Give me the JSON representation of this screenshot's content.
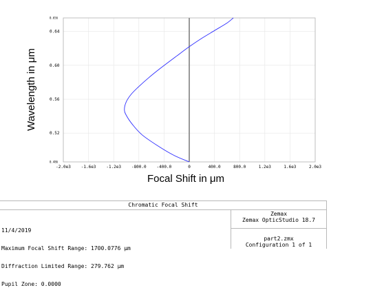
{
  "chart_data": {
    "type": "line",
    "title": "",
    "xlabel": "Focal Shift in μm",
    "ylabel": "Wavelength in μm",
    "xlim": [
      -2000,
      2000
    ],
    "ylim": [
      0.486,
      0.656
    ],
    "grid": true,
    "x_ticks": [
      -2000,
      -1600,
      -1200,
      -800,
      -400,
      0,
      400,
      800,
      1200,
      1600,
      2000
    ],
    "x_tick_labels": [
      "-2.0e3",
      "-1.6e3",
      "-1.2e3",
      "-800.0",
      "-400.0",
      "0",
      "400.0",
      "800.0",
      "1.2e3",
      "1.6e3",
      "2.0e3"
    ],
    "y_ticks": [
      0.486,
      0.52,
      0.56,
      0.6,
      0.64,
      0.656
    ],
    "y_tick_labels": [
      "0.486",
      "0.52",
      "0.56",
      "0.60",
      "0.64",
      "0.656"
    ],
    "series": [
      {
        "color": "#2f2fff",
        "x": [
          0,
          -250,
          -500,
          -750,
          -900,
          -1000,
          -1030,
          -1000,
          -920,
          -800,
          -650,
          -450,
          -200,
          0,
          200,
          400,
          600,
          700
        ],
        "y": [
          0.486,
          0.494,
          0.505,
          0.518,
          0.53,
          0.541,
          0.548,
          0.557,
          0.566,
          0.575,
          0.585,
          0.597,
          0.611,
          0.622,
          0.632,
          0.641,
          0.65,
          0.656
        ]
      }
    ],
    "zero_line_color": "#7f7f7f"
  },
  "info": {
    "title": "Chromatic Focal Shift",
    "date": "11/4/2019",
    "max_range": "Maximum Focal Shift Range: 1700.0776 µm",
    "diff_range": "Diffraction Limited Range: 279.762 µm",
    "pupil_zone": "Pupil Zone: 0.0000",
    "company": "Zemax",
    "product": "Zemax OpticStudio 18.7",
    "file": "part2.zmx",
    "config": "Configuration 1 of 1"
  }
}
